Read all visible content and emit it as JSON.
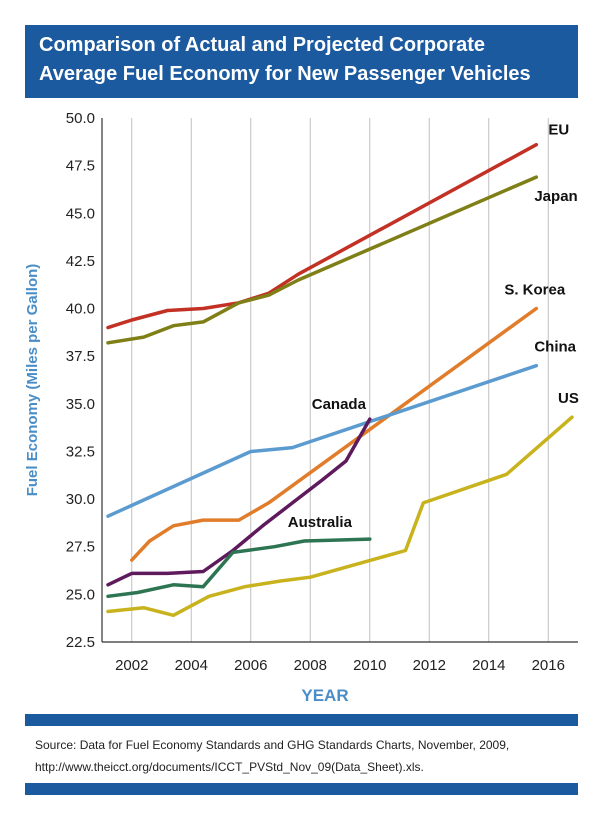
{
  "header": {
    "title_line1": "Comparison of Actual and Projected Corporate",
    "title_line2": "Average Fuel Economy for New Passenger Vehicles"
  },
  "source": {
    "line1": "Source: Data for Fuel Economy Standards and GHG Standards Charts, November, 2009,",
    "line2": "http://www.theicct.org/documents/ICCT_PVStd_Nov_09(Data_Sheet).xls."
  },
  "colors": {
    "header_bg": "#1b5a9e",
    "axis_text": "#4a8ec7",
    "grid": "#bfbfbf"
  },
  "chart_data": {
    "type": "line",
    "title": "Comparison of Actual and Projected Corporate Average Fuel Economy for New Passenger Vehicles",
    "xlabel": "YEAR",
    "ylabel": "Fuel Economy (Miles per Gallon)",
    "xlim": [
      2001,
      2017
    ],
    "ylim": [
      22.5,
      50
    ],
    "xticks": [
      2002,
      2004,
      2006,
      2008,
      2010,
      2012,
      2014,
      2016
    ],
    "xtick_labels": [
      "2002",
      "2004",
      "2006",
      "2008",
      "2010",
      "2012",
      "2014",
      "2016"
    ],
    "yticks": [
      22.5,
      25,
      27.5,
      30,
      32.5,
      35,
      37.5,
      40,
      42.5,
      45,
      47.5,
      50
    ],
    "ytick_labels": [
      "22.5",
      "25.0",
      "27.5",
      "30.0",
      "32.5",
      "35.0",
      "37.5",
      "40.0",
      "42.5",
      "45.0",
      "47.5",
      "50.0"
    ],
    "grid": "vertical",
    "legend": "inline labels at line ends",
    "series": [
      {
        "name": "EU",
        "color": "#c33125",
        "x": [
          2001.2,
          2002.0,
          2003.2,
          2004.4,
          2005.6,
          2006.6,
          2007.6,
          2015.6
        ],
        "y": [
          39.0,
          39.4,
          39.9,
          40.0,
          40.3,
          40.8,
          41.8,
          48.6
        ]
      },
      {
        "name": "Japan",
        "color": "#7f7f17",
        "x": [
          2001.2,
          2002.4,
          2003.4,
          2004.4,
          2005.6,
          2006.6,
          2007.6,
          2015.6
        ],
        "y": [
          38.2,
          38.5,
          39.1,
          39.3,
          40.3,
          40.7,
          41.5,
          46.9
        ]
      },
      {
        "name": "S. Korea",
        "color": "#e17c2a",
        "x": [
          2002.0,
          2002.6,
          2003.4,
          2004.4,
          2005.6,
          2006.6,
          2015.6
        ],
        "y": [
          26.8,
          27.8,
          28.6,
          28.9,
          28.9,
          29.8,
          40.0
        ]
      },
      {
        "name": "China",
        "color": "#5b9bd0",
        "x": [
          2001.2,
          2006.0,
          2007.4,
          2015.6
        ],
        "y": [
          29.1,
          32.5,
          32.7,
          37.0
        ]
      },
      {
        "name": "Canada",
        "color": "#5f1a5d",
        "x": [
          2001.2,
          2002.0,
          2003.2,
          2004.4,
          2005.4,
          2006.4,
          2007.4,
          2008.4,
          2009.2,
          2010.0
        ],
        "y": [
          25.5,
          26.1,
          26.1,
          26.2,
          27.3,
          28.6,
          29.8,
          31.0,
          32.0,
          34.2
        ]
      },
      {
        "name": "Australia",
        "color": "#2d7552",
        "x": [
          2001.2,
          2002.2,
          2003.4,
          2004.4,
          2005.4,
          2006.8,
          2007.8,
          2010.0
        ],
        "y": [
          24.9,
          25.1,
          25.5,
          25.4,
          27.2,
          27.5,
          27.8,
          27.9
        ]
      },
      {
        "name": "US",
        "color": "#c8b21d",
        "x": [
          2001.2,
          2002.4,
          2003.4,
          2004.6,
          2005.8,
          2007.0,
          2008.0,
          2011.2,
          2011.8,
          2014.6,
          2016.8
        ],
        "y": [
          24.1,
          24.3,
          23.9,
          24.9,
          25.4,
          25.7,
          25.9,
          27.3,
          29.8,
          31.3,
          34.3
        ]
      }
    ]
  }
}
